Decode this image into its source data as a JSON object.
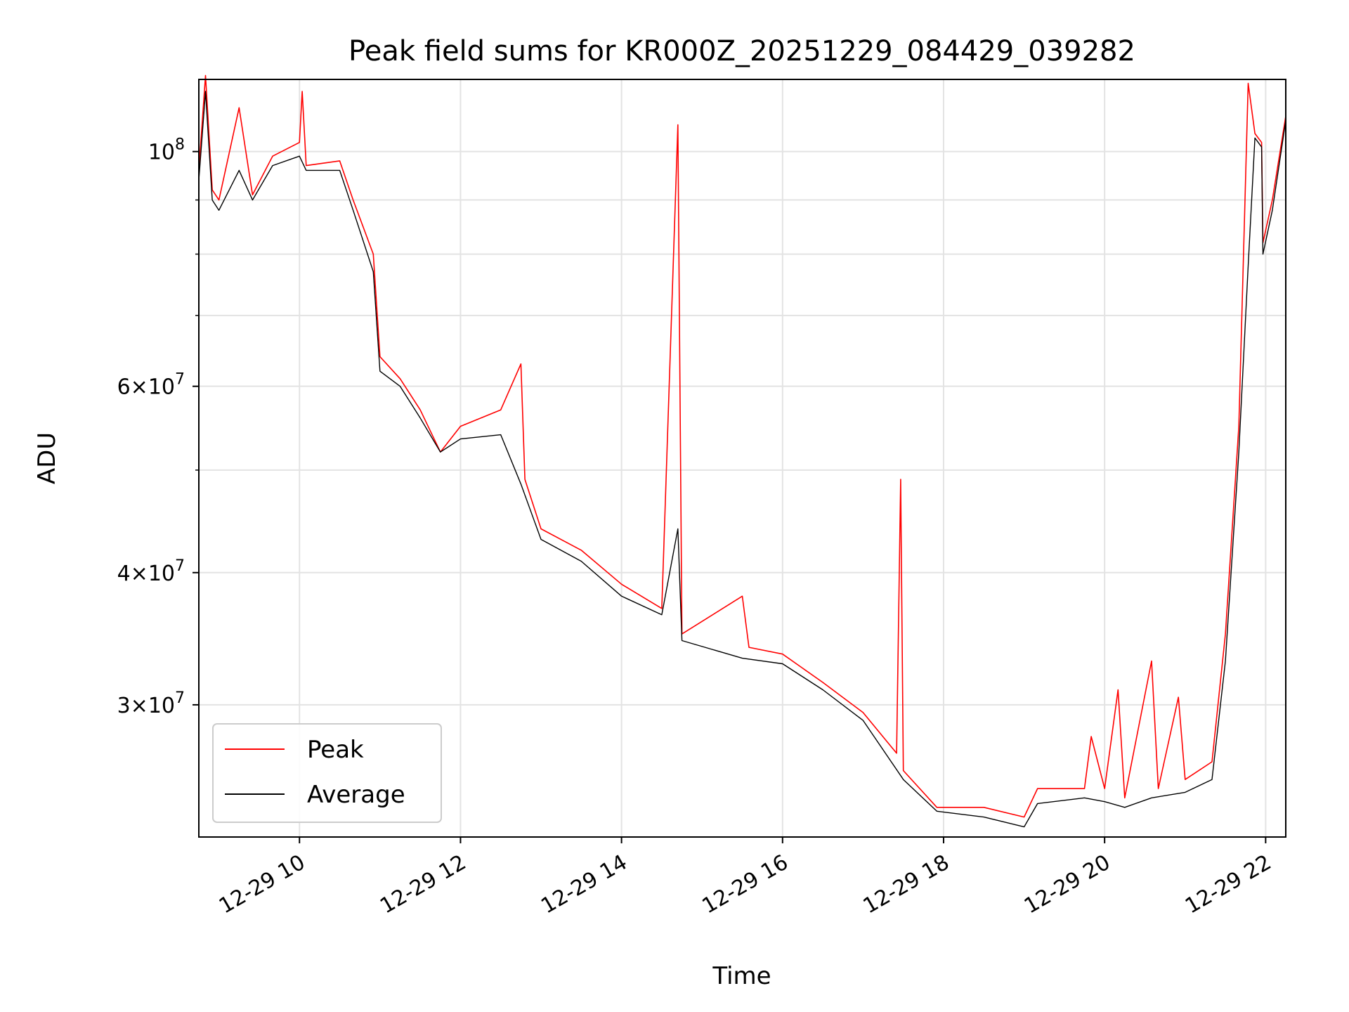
{
  "chart_data": {
    "type": "line",
    "title": "Peak field sums for KR000Z_20251229_084429_039282",
    "xlabel": "Time",
    "ylabel": "ADU",
    "yscale": "log",
    "grid": true,
    "legend_position": "lower-left",
    "xlim": [
      "2025-12-29 08:45",
      "2025-12-29 22:15"
    ],
    "ylim": [
      22500000,
      117000000
    ],
    "x_ticks": [
      {
        "value": "2025-12-29 10:00",
        "label": "12-29 10"
      },
      {
        "value": "2025-12-29 12:00",
        "label": "12-29 12"
      },
      {
        "value": "2025-12-29 14:00",
        "label": "12-29 14"
      },
      {
        "value": "2025-12-29 16:00",
        "label": "12-29 16"
      },
      {
        "value": "2025-12-29 18:00",
        "label": "12-29 18"
      },
      {
        "value": "2025-12-29 20:00",
        "label": "12-29 20"
      },
      {
        "value": "2025-12-29 22:00",
        "label": "12-29 22"
      }
    ],
    "y_ticks": [
      {
        "value": 30000000,
        "mant": "3",
        "exp": "7"
      },
      {
        "value": 40000000,
        "mant": "4",
        "exp": "7"
      },
      {
        "value": 60000000,
        "mant": "6",
        "exp": "7"
      },
      {
        "value": 100000000,
        "mant": "",
        "exp": "8"
      }
    ],
    "y_minor_ticks": [
      50000000,
      70000000,
      80000000,
      90000000
    ],
    "series": [
      {
        "name": "Peak",
        "color": "#ff0000",
        "points": [
          [
            "2025-12-29 08:45",
            96000000
          ],
          [
            "2025-12-29 08:50",
            118000000
          ],
          [
            "2025-12-29 08:55",
            92000000
          ],
          [
            "2025-12-29 09:00",
            90000000
          ],
          [
            "2025-12-29 09:15",
            110000000
          ],
          [
            "2025-12-29 09:25",
            91000000
          ],
          [
            "2025-12-29 09:40",
            99000000
          ],
          [
            "2025-12-29 10:00",
            102000000
          ],
          [
            "2025-12-29 10:02",
            114000000
          ],
          [
            "2025-12-29 10:05",
            97000000
          ],
          [
            "2025-12-29 10:30",
            98000000
          ],
          [
            "2025-12-29 10:40",
            90000000
          ],
          [
            "2025-12-29 10:55",
            80000000
          ],
          [
            "2025-12-29 11:00",
            64000000
          ],
          [
            "2025-12-29 11:15",
            61000000
          ],
          [
            "2025-12-29 11:30",
            57000000
          ],
          [
            "2025-12-29 11:45",
            52000000
          ],
          [
            "2025-12-29 12:00",
            55000000
          ],
          [
            "2025-12-29 12:30",
            57000000
          ],
          [
            "2025-12-29 12:45",
            63000000
          ],
          [
            "2025-12-29 12:48",
            49000000
          ],
          [
            "2025-12-29 13:00",
            44000000
          ],
          [
            "2025-12-29 13:30",
            42000000
          ],
          [
            "2025-12-29 14:00",
            39000000
          ],
          [
            "2025-12-29 14:30",
            37000000
          ],
          [
            "2025-12-29 14:42",
            106000000
          ],
          [
            "2025-12-29 14:45",
            35000000
          ],
          [
            "2025-12-29 15:30",
            38000000
          ],
          [
            "2025-12-29 15:35",
            34000000
          ],
          [
            "2025-12-29 16:00",
            33500000
          ],
          [
            "2025-12-29 16:30",
            31500000
          ],
          [
            "2025-12-29 17:00",
            29500000
          ],
          [
            "2025-12-29 17:25",
            27000000
          ],
          [
            "2025-12-29 17:28",
            49000000
          ],
          [
            "2025-12-29 17:30",
            26000000
          ],
          [
            "2025-12-29 17:55",
            24000000
          ],
          [
            "2025-12-29 18:30",
            24000000
          ],
          [
            "2025-12-29 19:00",
            23500000
          ],
          [
            "2025-12-29 19:10",
            25000000
          ],
          [
            "2025-12-29 19:45",
            25000000
          ],
          [
            "2025-12-29 19:50",
            28000000
          ],
          [
            "2025-12-29 20:00",
            25000000
          ],
          [
            "2025-12-29 20:10",
            31000000
          ],
          [
            "2025-12-29 20:15",
            24500000
          ],
          [
            "2025-12-29 20:35",
            33000000
          ],
          [
            "2025-12-29 20:40",
            25000000
          ],
          [
            "2025-12-29 20:55",
            30500000
          ],
          [
            "2025-12-29 21:00",
            25500000
          ],
          [
            "2025-12-29 21:20",
            26500000
          ],
          [
            "2025-12-29 21:30",
            35000000
          ],
          [
            "2025-12-29 21:40",
            55000000
          ],
          [
            "2025-12-29 21:47",
            116000000
          ],
          [
            "2025-12-29 21:52",
            104000000
          ],
          [
            "2025-12-29 21:57",
            102000000
          ],
          [
            "2025-12-29 21:58",
            82000000
          ],
          [
            "2025-12-29 22:05",
            90000000
          ],
          [
            "2025-12-29 22:15",
            108000000
          ]
        ]
      },
      {
        "name": "Average",
        "color": "#000000",
        "points": [
          [
            "2025-12-29 08:45",
            94000000
          ],
          [
            "2025-12-29 08:50",
            114000000
          ],
          [
            "2025-12-29 08:55",
            90000000
          ],
          [
            "2025-12-29 09:00",
            88000000
          ],
          [
            "2025-12-29 09:15",
            96000000
          ],
          [
            "2025-12-29 09:25",
            90000000
          ],
          [
            "2025-12-29 09:40",
            97000000
          ],
          [
            "2025-12-29 10:00",
            99000000
          ],
          [
            "2025-12-29 10:05",
            96000000
          ],
          [
            "2025-12-29 10:30",
            96000000
          ],
          [
            "2025-12-29 10:40",
            88000000
          ],
          [
            "2025-12-29 10:55",
            77000000
          ],
          [
            "2025-12-29 11:00",
            62000000
          ],
          [
            "2025-12-29 11:15",
            60000000
          ],
          [
            "2025-12-29 11:30",
            56000000
          ],
          [
            "2025-12-29 11:45",
            52000000
          ],
          [
            "2025-12-29 12:00",
            53500000
          ],
          [
            "2025-12-29 12:30",
            54000000
          ],
          [
            "2025-12-29 12:45",
            48500000
          ],
          [
            "2025-12-29 13:00",
            43000000
          ],
          [
            "2025-12-29 13:30",
            41000000
          ],
          [
            "2025-12-29 14:00",
            38000000
          ],
          [
            "2025-12-29 14:30",
            36500000
          ],
          [
            "2025-12-29 14:42",
            44000000
          ],
          [
            "2025-12-29 14:45",
            34500000
          ],
          [
            "2025-12-29 15:30",
            33200000
          ],
          [
            "2025-12-29 16:00",
            32800000
          ],
          [
            "2025-12-29 16:30",
            31000000
          ],
          [
            "2025-12-29 17:00",
            29000000
          ],
          [
            "2025-12-29 17:30",
            25500000
          ],
          [
            "2025-12-29 17:55",
            23800000
          ],
          [
            "2025-12-29 18:30",
            23500000
          ],
          [
            "2025-12-29 19:00",
            23000000
          ],
          [
            "2025-12-29 19:10",
            24200000
          ],
          [
            "2025-12-29 19:45",
            24500000
          ],
          [
            "2025-12-29 20:00",
            24300000
          ],
          [
            "2025-12-29 20:15",
            24000000
          ],
          [
            "2025-12-29 20:35",
            24500000
          ],
          [
            "2025-12-29 21:00",
            24800000
          ],
          [
            "2025-12-29 21:20",
            25500000
          ],
          [
            "2025-12-29 21:30",
            33000000
          ],
          [
            "2025-12-29 21:40",
            52000000
          ],
          [
            "2025-12-29 21:47",
            78000000
          ],
          [
            "2025-12-29 21:52",
            103000000
          ],
          [
            "2025-12-29 21:57",
            101000000
          ],
          [
            "2025-12-29 21:58",
            80000000
          ],
          [
            "2025-12-29 22:05",
            88000000
          ],
          [
            "2025-12-29 22:15",
            107000000
          ]
        ]
      }
    ]
  }
}
